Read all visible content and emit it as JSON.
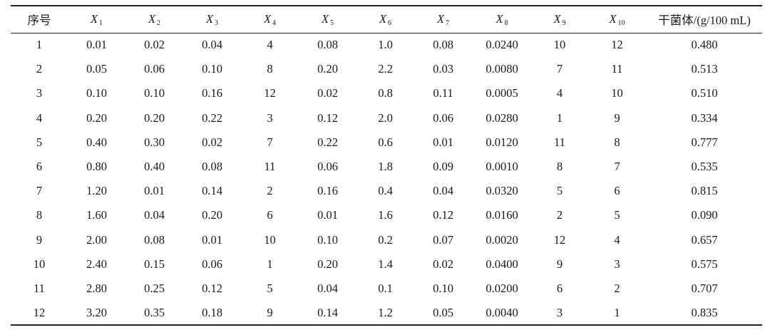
{
  "table": {
    "columns": [
      {
        "type": "text",
        "text": "序号"
      },
      {
        "type": "var",
        "base": "X",
        "sub": "1"
      },
      {
        "type": "var",
        "base": "X",
        "sub": "2"
      },
      {
        "type": "var",
        "base": "X",
        "sub": "3"
      },
      {
        "type": "var",
        "base": "X",
        "sub": "4"
      },
      {
        "type": "var",
        "base": "X",
        "sub": "5"
      },
      {
        "type": "var",
        "base": "X",
        "sub": "6"
      },
      {
        "type": "var",
        "base": "X",
        "sub": "7"
      },
      {
        "type": "var",
        "base": "X",
        "sub": "8"
      },
      {
        "type": "var",
        "base": "X",
        "sub": "9"
      },
      {
        "type": "var",
        "base": "X",
        "sub": "10"
      },
      {
        "type": "text",
        "text": "干菌体/(g/100 mL)"
      }
    ],
    "rows": [
      [
        "1",
        "0.01",
        "0.02",
        "0.04",
        "4",
        "0.08",
        "1.0",
        "0.08",
        "0.0240",
        "10",
        "12",
        "0.480"
      ],
      [
        "2",
        "0.05",
        "0.06",
        "0.10",
        "8",
        "0.20",
        "2.2",
        "0.03",
        "0.0080",
        "7",
        "11",
        "0.513"
      ],
      [
        "3",
        "0.10",
        "0.10",
        "0.16",
        "12",
        "0.02",
        "0.8",
        "0.11",
        "0.0005",
        "4",
        "10",
        "0.510"
      ],
      [
        "4",
        "0.20",
        "0.20",
        "0.22",
        "3",
        "0.12",
        "2.0",
        "0.06",
        "0.0280",
        "1",
        "9",
        "0.334"
      ],
      [
        "5",
        "0.40",
        "0.30",
        "0.02",
        "7",
        "0.22",
        "0.6",
        "0.01",
        "0.0120",
        "11",
        "8",
        "0.777"
      ],
      [
        "6",
        "0.80",
        "0.40",
        "0.08",
        "11",
        "0.06",
        "1.8",
        "0.09",
        "0.0010",
        "8",
        "7",
        "0.535"
      ],
      [
        "7",
        "1.20",
        "0.01",
        "0.14",
        "2",
        "0.16",
        "0.4",
        "0.04",
        "0.0320",
        "5",
        "6",
        "0.815"
      ],
      [
        "8",
        "1.60",
        "0.04",
        "0.20",
        "6",
        "0.01",
        "1.6",
        "0.12",
        "0.0160",
        "2",
        "5",
        "0.090"
      ],
      [
        "9",
        "2.00",
        "0.08",
        "0.01",
        "10",
        "0.10",
        "0.2",
        "0.07",
        "0.0020",
        "12",
        "4",
        "0.657"
      ],
      [
        "10",
        "2.40",
        "0.15",
        "0.06",
        "1",
        "0.20",
        "1.4",
        "0.02",
        "0.0400",
        "9",
        "3",
        "0.575"
      ],
      [
        "11",
        "2.80",
        "0.25",
        "0.12",
        "5",
        "0.04",
        "0.1",
        "0.10",
        "0.0200",
        "6",
        "2",
        "0.707"
      ],
      [
        "12",
        "3.20",
        "0.35",
        "0.18",
        "9",
        "0.14",
        "1.2",
        "0.05",
        "0.0040",
        "3",
        "1",
        "0.835"
      ]
    ]
  }
}
